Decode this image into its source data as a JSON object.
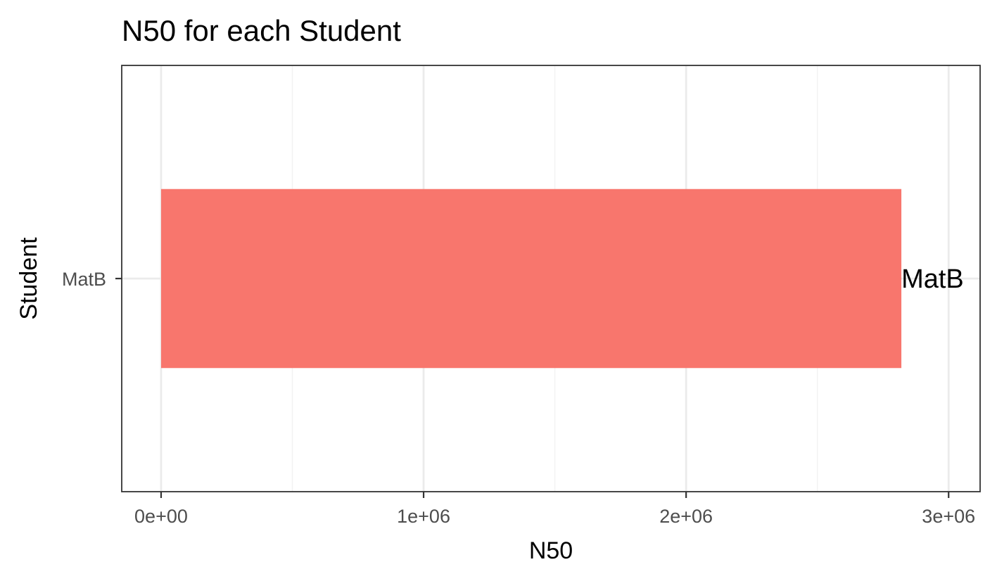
{
  "chart_data": {
    "type": "bar",
    "orientation": "horizontal",
    "title": "N50 for each Student",
    "xlabel": "N50",
    "ylabel": "Student",
    "categories": [
      "MatB"
    ],
    "values": [
      2820000
    ],
    "data_labels": [
      "MatB"
    ],
    "xlim": [
      -150000,
      3120000
    ],
    "x_ticks": [
      0,
      1000000,
      2000000,
      3000000
    ],
    "x_tick_labels": [
      "0e+00",
      "1e+06",
      "2e+06",
      "3e+06"
    ],
    "grid": true,
    "legend": "none",
    "colors": {
      "bar": "#F8766D",
      "panel_border": "#333333",
      "grid_major": "#EBEBEB",
      "grid_minor": "#F2F2F2",
      "tick_text": "#4D4D4D"
    }
  }
}
